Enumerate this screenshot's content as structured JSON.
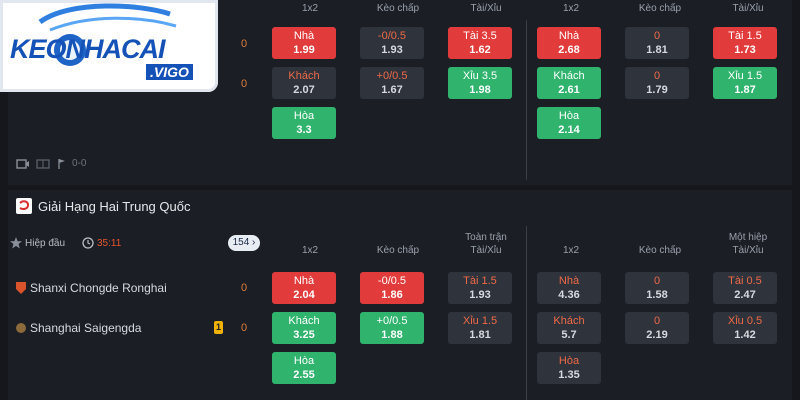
{
  "logo": {
    "text": "KEONHACAI",
    "sub": ".VIGO"
  },
  "top_match": {
    "headers": [
      "1x2",
      "Kèo chấp",
      "Tài/Xỉu",
      "1x2",
      "Kèo chấp",
      "Tài/Xỉu"
    ],
    "score_home": "0",
    "score_away": "0",
    "bottom_score": "0-0",
    "cells": {
      "ft_1x2": [
        {
          "t": "Nhà",
          "v": "1.99"
        },
        {
          "t": "Khách",
          "v": "2.07"
        },
        {
          "t": "Hòa",
          "v": "3.3"
        }
      ],
      "ft_hcp": [
        {
          "t": "-0/0.5",
          "v": "1.93"
        },
        {
          "t": "+0/0.5",
          "v": "1.67"
        }
      ],
      "ft_ou": [
        {
          "t": "Tài 3.5",
          "v": "1.62"
        },
        {
          "t": "Xỉu 3.5",
          "v": "1.98"
        }
      ],
      "ht_1x2": [
        {
          "t": "Nhà",
          "v": "2.68"
        },
        {
          "t": "Khách",
          "v": "2.61"
        },
        {
          "t": "Hòa",
          "v": "2.14"
        }
      ],
      "ht_hcp": [
        {
          "t": "0",
          "v": "1.81"
        },
        {
          "t": "0",
          "v": "1.79"
        }
      ],
      "ht_ou": [
        {
          "t": "Tài 1.5",
          "v": "1.73"
        },
        {
          "t": "Xỉu 1.5",
          "v": "1.87"
        }
      ]
    }
  },
  "league": {
    "name": "Giải Hạng Hai Trung Quốc",
    "status": "Hiệp đầu",
    "time": "35:11",
    "more_count": "154",
    "hdr_full_top": "Toàn trận",
    "hdr_half_top": "Một hiệp",
    "headers": [
      "1x2",
      "Kèo chấp",
      "Tài/Xỉu",
      "1x2",
      "Kèo chấp",
      "Tài/Xỉu"
    ],
    "home": "Shanxi Chongde Ronghai",
    "away": "Shanghai Saigengda",
    "home_score": "0",
    "away_score": "0",
    "away_card": "1",
    "cells": {
      "ft_1x2": [
        {
          "t": "Nhà",
          "v": "2.04"
        },
        {
          "t": "Khách",
          "v": "3.25"
        },
        {
          "t": "Hòa",
          "v": "2.55"
        }
      ],
      "ft_hcp": [
        {
          "t": "-0/0.5",
          "v": "1.86"
        },
        {
          "t": "+0/0.5",
          "v": "1.88"
        }
      ],
      "ft_ou": [
        {
          "t": "Tài 1.5",
          "v": "1.93"
        },
        {
          "t": "Xỉu 1.5",
          "v": "1.81"
        }
      ],
      "ht_1x2": [
        {
          "t": "Nhà",
          "v": "4.36"
        },
        {
          "t": "Khách",
          "v": "5.7"
        },
        {
          "t": "Hòa",
          "v": "1.35"
        }
      ],
      "ht_hcp": [
        {
          "t": "0",
          "v": "1.58"
        },
        {
          "t": "0",
          "v": "2.19"
        }
      ],
      "ht_ou": [
        {
          "t": "Tài 0.5",
          "v": "2.47"
        },
        {
          "t": "Xỉu 0.5",
          "v": "1.42"
        }
      ]
    }
  }
}
